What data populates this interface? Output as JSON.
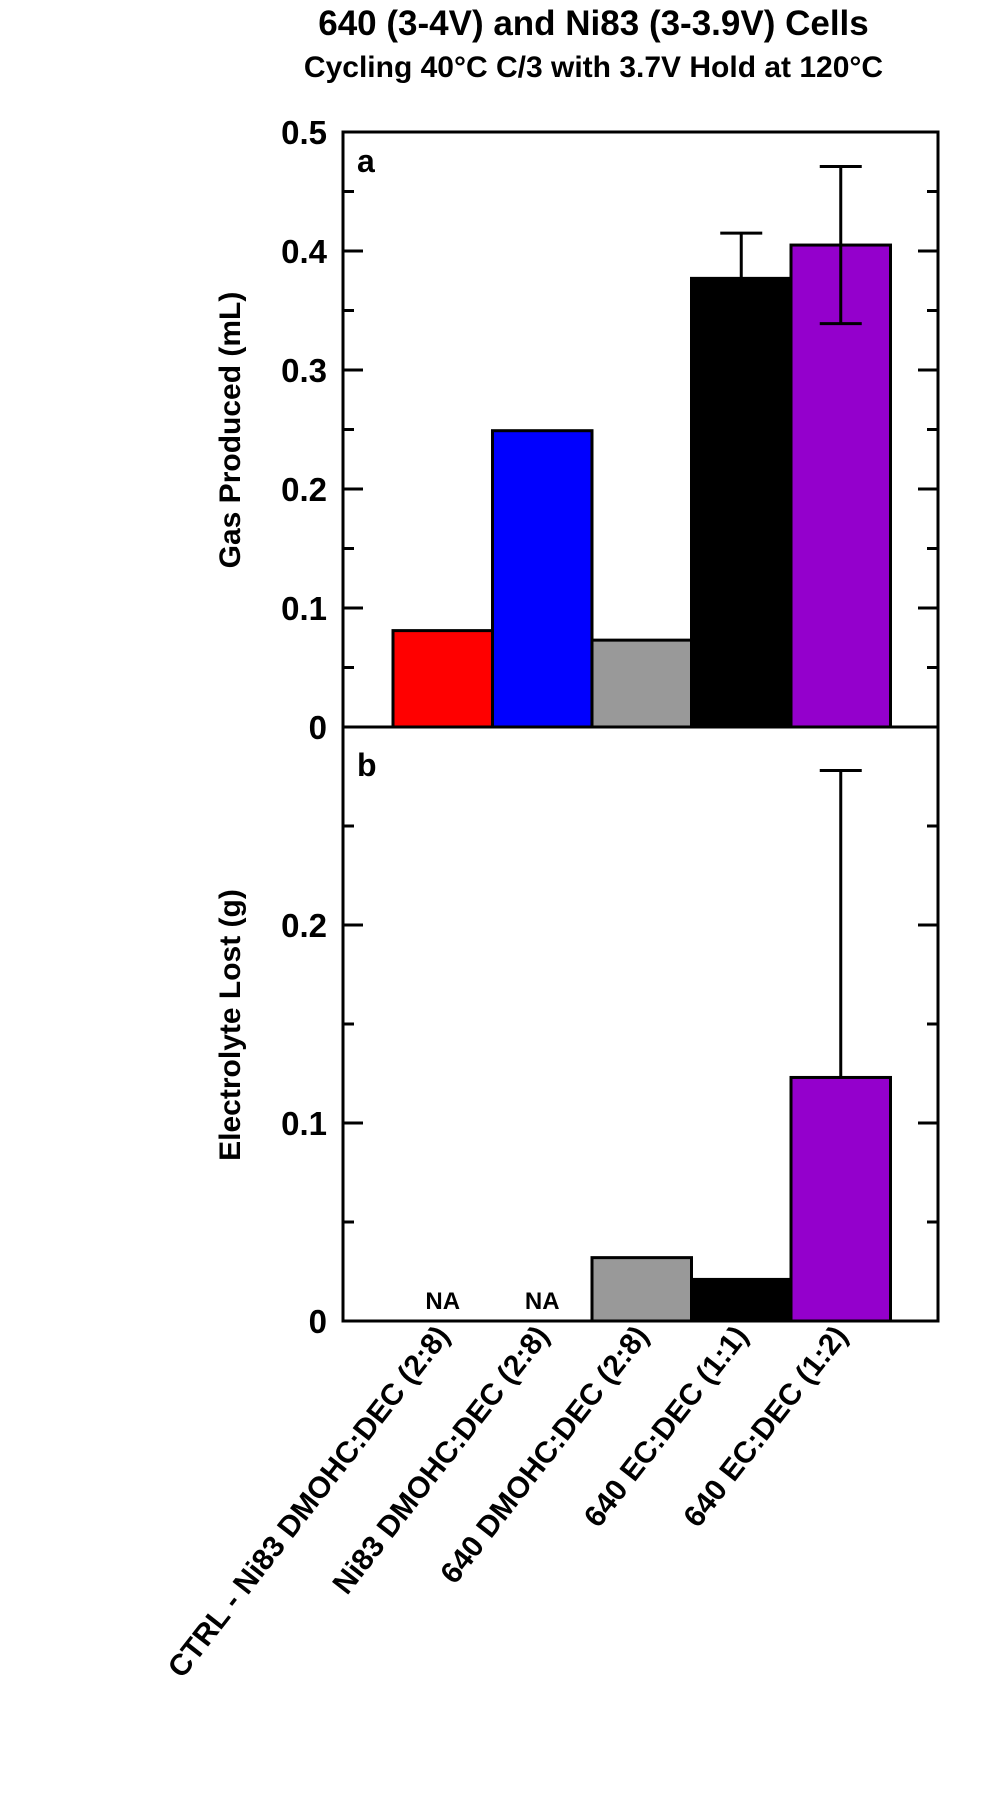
{
  "title": {
    "line1": "640 (3-4V) and Ni83 (3-3.9V) Cells",
    "line2": "Cycling 40°C C/3 with 3.7V Hold at 120°C"
  },
  "panels": {
    "a": {
      "letter": "a",
      "ylabel": "Gas Produced (mL)",
      "yticks": [
        "0",
        "0.1",
        "0.2",
        "0.3",
        "0.4",
        "0.5"
      ]
    },
    "b": {
      "letter": "b",
      "ylabel": "Electrolyte Lost (g)",
      "yticks": [
        "0",
        "0.1",
        "0.2"
      ],
      "na_label": "NA"
    }
  },
  "categories": [
    "CTRL - Ni83 DMOHC:DEC (2:8)",
    "Ni83 DMOHC:DEC (2:8)",
    "640 DMOHC:DEC (2:8)",
    "640 EC:DEC (1:1)",
    "640 EC:DEC (1:2)"
  ],
  "colors": [
    "#ff0000",
    "#0000ff",
    "#999999",
    "#000000",
    "#9400cc"
  ],
  "chart_data": [
    {
      "type": "bar",
      "panel": "a",
      "title": "640 (3-4V) and Ni83 (3-3.9V) Cells — Cycling 40°C C/3 with 3.7V Hold at 120°C",
      "categories": [
        "CTRL - Ni83 DMOHC:DEC (2:8)",
        "Ni83 DMOHC:DEC (2:8)",
        "640 DMOHC:DEC (2:8)",
        "640 EC:DEC (1:1)",
        "640 EC:DEC (1:2)"
      ],
      "values": [
        0.081,
        0.249,
        0.073,
        0.377,
        0.405
      ],
      "error": [
        0,
        0,
        0,
        0.038,
        0.066
      ],
      "colors": [
        "#ff0000",
        "#0000ff",
        "#999999",
        "#000000",
        "#9400cc"
      ],
      "xlabel": "",
      "ylabel": "Gas Produced (mL)",
      "ylim": [
        0,
        0.5
      ],
      "yticks": [
        0,
        0.1,
        0.2,
        0.3,
        0.4,
        0.5
      ],
      "annotations": [
        "a"
      ],
      "grid": false,
      "legend": null
    },
    {
      "type": "bar",
      "panel": "b",
      "categories": [
        "CTRL - Ni83 DMOHC:DEC (2:8)",
        "Ni83 DMOHC:DEC (2:8)",
        "640 DMOHC:DEC (2:8)",
        "640 EC:DEC (1:1)",
        "640 EC:DEC (1:2)"
      ],
      "values": [
        null,
        null,
        0.032,
        0.021,
        0.123
      ],
      "value_labels": [
        "NA",
        "NA",
        null,
        null,
        null
      ],
      "error": [
        0,
        0,
        0,
        0,
        0.155
      ],
      "colors": [
        "#ff0000",
        "#0000ff",
        "#999999",
        "#000000",
        "#9400cc"
      ],
      "xlabel": "",
      "ylabel": "Electrolyte Lost (g)",
      "ylim": [
        0,
        0.3
      ],
      "yticks": [
        0,
        0.1,
        0.2
      ],
      "annotations": [
        "b"
      ],
      "grid": false,
      "legend": null
    }
  ]
}
